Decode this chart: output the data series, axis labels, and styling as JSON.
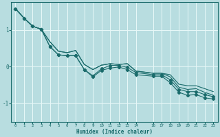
{
  "xlabel": "Humidex (Indice chaleur)",
  "bg_color": "#b8dde0",
  "grid_color": "#e8f8f8",
  "line_color": "#1a6b6b",
  "xlim": [
    -0.5,
    23.5
  ],
  "ylim": [
    -1.5,
    1.75
  ],
  "xticks": [
    0,
    1,
    2,
    3,
    4,
    5,
    6,
    7,
    8,
    9,
    10,
    11,
    12,
    13,
    14,
    16,
    17,
    18,
    19,
    20,
    21,
    22,
    23
  ],
  "yticks": [
    -1,
    0,
    1
  ],
  "x_vals": [
    0,
    1,
    2,
    3,
    4,
    5,
    6,
    7,
    8,
    9,
    10,
    11,
    12,
    13,
    14,
    16,
    17,
    18,
    19,
    20,
    21,
    22,
    23
  ],
  "series_smooth": [
    [
      1.58,
      1.32,
      1.1,
      1.02,
      0.68,
      0.42,
      0.38,
      0.44,
      0.06,
      -0.08,
      0.04,
      0.08,
      0.06,
      0.08,
      -0.12,
      -0.18,
      -0.18,
      -0.22,
      -0.48,
      -0.52,
      -0.52,
      -0.6,
      -0.68
    ],
    [
      1.58,
      1.32,
      1.1,
      1.02,
      0.68,
      0.42,
      0.38,
      0.44,
      0.06,
      -0.08,
      0.04,
      0.08,
      0.06,
      0.08,
      -0.12,
      -0.18,
      -0.18,
      -0.28,
      -0.56,
      -0.62,
      -0.6,
      -0.7,
      -0.78
    ]
  ],
  "series_wiggly": [
    [
      1.58,
      1.32,
      1.1,
      1.02,
      0.55,
      0.32,
      0.3,
      0.3,
      -0.08,
      -0.25,
      -0.06,
      0.03,
      0.03,
      -0.02,
      -0.16,
      -0.22,
      -0.22,
      -0.36,
      -0.62,
      -0.68,
      -0.68,
      -0.76,
      -0.82
    ],
    [
      1.58,
      1.32,
      1.1,
      1.02,
      0.55,
      0.32,
      0.3,
      0.3,
      -0.08,
      -0.28,
      -0.1,
      -0.04,
      -0.01,
      -0.08,
      -0.22,
      -0.26,
      -0.26,
      -0.44,
      -0.7,
      -0.78,
      -0.76,
      -0.85,
      -0.88
    ]
  ]
}
